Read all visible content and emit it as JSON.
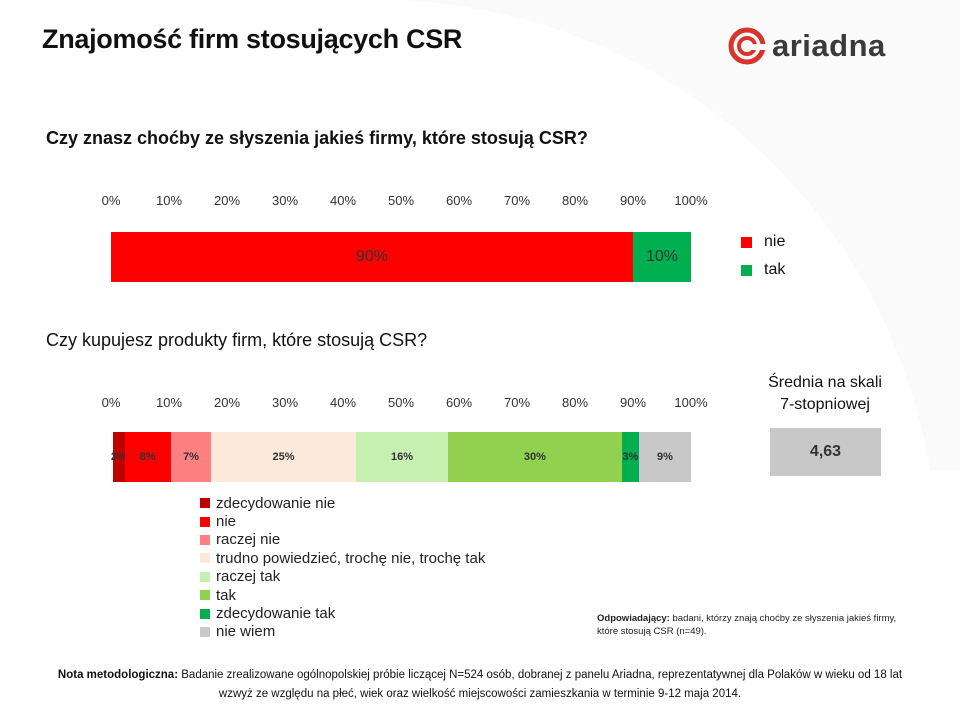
{
  "title": "Znajomość firm stosujących CSR",
  "logo": {
    "text": "ariadna",
    "accent": "#d9342b"
  },
  "axis_ticks": [
    "0%",
    "10%",
    "20%",
    "30%",
    "40%",
    "50%",
    "60%",
    "70%",
    "80%",
    "90%",
    "100%"
  ],
  "chart_data": [
    {
      "type": "bar",
      "title": "Czy znasz choćby ze słyszenia jakieś firmy, które stosują CSR?",
      "orientation": "horizontal-stacked-100",
      "xlim": [
        0,
        100
      ],
      "series": [
        {
          "name": "nie",
          "value": 90,
          "label": "90%",
          "color": "#ff0000"
        },
        {
          "name": "tak",
          "value": 10,
          "label": "10%",
          "color": "#00b050"
        }
      ],
      "legend_position": "right"
    },
    {
      "type": "bar",
      "title": "Czy kupujesz produkty firm, które stosują CSR?",
      "orientation": "horizontal-stacked-100",
      "xlim": [
        0,
        100
      ],
      "series": [
        {
          "name": "zdecydowanie nie",
          "value": 2,
          "label": "2%",
          "color": "#c00000"
        },
        {
          "name": "nie",
          "value": 8,
          "label": "8%",
          "color": "#ff0000"
        },
        {
          "name": "raczej nie",
          "value": 7,
          "label": "7%",
          "color": "#ff8080"
        },
        {
          "name": "trudno powiedzieć, trochę nie, trochę tak",
          "value": 25,
          "label": "25%",
          "color": "#fde9d9"
        },
        {
          "name": "raczej tak",
          "value": 16,
          "label": "16%",
          "color": "#c6efb0"
        },
        {
          "name": "tak",
          "value": 30,
          "label": "30%",
          "color": "#92d050"
        },
        {
          "name": "zdecydowanie tak",
          "value": 3,
          "label": "3%",
          "color": "#00b050"
        },
        {
          "name": "nie wiem",
          "value": 9,
          "label": "9%",
          "color": "#c8c8c8"
        }
      ],
      "legend_position": "bottom-left"
    }
  ],
  "average": {
    "heading_line1": "Średnia na skali",
    "heading_line2": "7-stopniowej",
    "value": "4,63"
  },
  "respondents": {
    "label": "Odpowiadający:",
    "text": "badani, którzy znają choćby ze słyszenia jakieś firmy, które stosują CSR (n=49)."
  },
  "note": {
    "label": "Nota metodologiczna:",
    "text": "Badanie zrealizowane ogólnopolskiej próbie liczącej N=524 osób, dobranej z panelu Ariadna, reprezentatywnej dla Polaków w wieku od 18 lat wzwyż ze względu na płeć, wiek oraz wielkość miejscowości zamieszkania w terminie 9-12 maja 2014."
  }
}
